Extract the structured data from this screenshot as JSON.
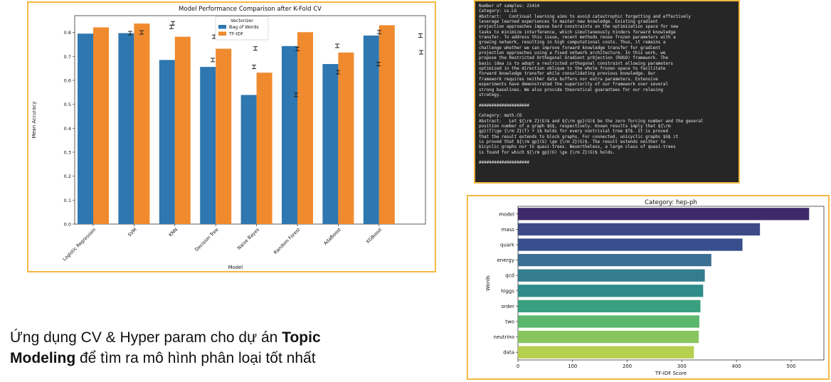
{
  "colors": {
    "bow": "#2e77b0",
    "tfidf": "#f08a2e",
    "panel_border": "#f5b942"
  },
  "caption": {
    "line1_prefix": "Ứng dụng CV & Hyper param cho dự án ",
    "bold1": "Topic",
    "bold2": "Modeling",
    "line2_suffix": " để tìm ra mô hình phân loại tốt nhất"
  },
  "text_output": {
    "lines": [
      "Number of samples: 21414",
      "Category: cs.LG",
      "Abstract:   Continual learning aims to avoid catastrophic forgetting and effectively",
      "leverage learned experiences to master new knowledge. Existing gradient",
      "projection approaches impose hard constraints on the optimization space for new",
      "tasks to minimize interference, which simultaneously hinders forward knowledge",
      "transfer. To address this issue, recent methods reuse frozen parameters with a",
      "growing network, resulting in high computational costs. Thus, it remains a",
      "challenge whether we can improve forward knowledge transfer for gradient",
      "projection approaches using a fixed network architecture. In this work, we",
      "propose the Restricted Orthogonal Gradient prOjection (ROGO) framework. The",
      "basic idea is to adopt a restricted orthogonal constraint allowing parameters",
      "optimized in the direction oblique to the whole frozen space to facilitate",
      "forward knowledge transfer while consolidating previous knowledge. Our",
      "framework requires neither data buffers nor extra parameters. Extensive",
      "experiments have demonstrated the superiority of our framework over several",
      "strong baselines. We also provide theoretical guarantees for our relaxing",
      "strategy.",
      "",
      "####################",
      "",
      "Category: math.CO",
      "Abstract:   Let ${\\rm Z}(G)$ and ${\\rm gp}(G)$ be the zero forcing number and the general",
      "position number of a graph $G$, respectively. Known results imply that ${\\rm",
      "gp}(T)\\ge {\\rm Z}(T) + 1$ holds for every nontrivial tree $T$. It is proved",
      "that the result extends to block graphs. For connected, unicyclic graphs $G$ it",
      "is proved that ${\\rm gp}(G) \\ge {\\rm Z}(G)$. The result extends neither to",
      "bicyclic graphs nor to quasi-trees. Nevertheless, a large class of quasi-trees",
      "is found for which ${\\rm gp}(G) \\ge {\\rm Z}(G)$ holds.",
      "",
      "####################"
    ]
  },
  "chart_data": [
    {
      "type": "bar",
      "title": "Model Performance Comparison after K-Fold CV",
      "xlabel": "Model",
      "ylabel": "Mean Accuracy",
      "ylim": [
        0,
        0.87
      ],
      "yticks": [
        "0.0",
        "0.1",
        "0.2",
        "0.3",
        "0.4",
        "0.5",
        "0.6",
        "0.7",
        "0.8"
      ],
      "legend_title": "Vectorizer",
      "legend_position": "top-center",
      "grid": false,
      "categories": [
        "Logistic Regression",
        "SVM",
        "KNN",
        "Decision Tree",
        "Naive Bayes",
        "Random Forest",
        "AdaBoost",
        "XGBoost"
      ],
      "series": [
        {
          "name": "Bag of Words",
          "values": [
            0.795,
            0.797,
            0.685,
            0.656,
            0.539,
            0.743,
            0.668,
            0.787
          ]
        },
        {
          "name": "TF-IDF",
          "values": [
            0.821,
            0.837,
            0.782,
            0.732,
            0.632,
            0.801,
            0.716,
            0.83
          ]
        }
      ],
      "error_bars": [
        0.797,
        0.8,
        0.823,
        0.838,
        0.685,
        0.782,
        0.656,
        0.733,
        0.539,
        0.731,
        0.744,
        0.634,
        0.668,
        0.801,
        0.787,
        0.717,
        0.828
      ]
    },
    {
      "type": "bar",
      "orientation": "horizontal",
      "title": "Category: hep-ph",
      "xlabel": "TF-IDF Score",
      "ylabel": "Words",
      "xlim": [
        0,
        560
      ],
      "xticks": [
        "0",
        "100",
        "200",
        "300",
        "400",
        "500"
      ],
      "grid": false,
      "categories": [
        "model",
        "mass",
        "quark",
        "energy",
        "qcd",
        "higgs",
        "order",
        "two",
        "neutrino",
        "data"
      ],
      "values": [
        533,
        443,
        411,
        354,
        342,
        339,
        334,
        332,
        331,
        322
      ],
      "colors": [
        "#3f2b6b",
        "#3c4a88",
        "#374f8c",
        "#3b6e93",
        "#347d8f",
        "#2f8c8a",
        "#3a9f7e",
        "#5bb76c",
        "#89c55e",
        "#b5cf4f"
      ]
    }
  ]
}
